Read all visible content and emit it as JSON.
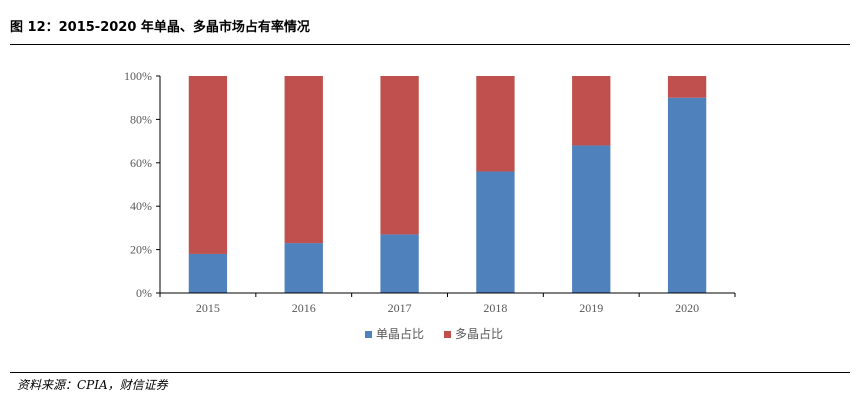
{
  "figure": {
    "title": "图 12：2015-2020 年单晶、多晶市场占有率情况",
    "source": "资料来源：CPIA，财信证券"
  },
  "chart_data": {
    "type": "bar",
    "stacked": true,
    "categories": [
      "2015",
      "2016",
      "2017",
      "2018",
      "2019",
      "2020"
    ],
    "series": [
      {
        "name": "单晶占比",
        "color": "#4f81bd",
        "values": [
          18,
          23,
          27,
          56,
          68,
          90
        ]
      },
      {
        "name": "多晶占比",
        "color": "#c0504d",
        "values": [
          82,
          77,
          73,
          44,
          32,
          10
        ]
      }
    ],
    "ylim": [
      0,
      100
    ],
    "yticks": [
      0,
      20,
      40,
      60,
      80,
      100
    ],
    "ytick_labels": [
      "0%",
      "20%",
      "40%",
      "60%",
      "80%",
      "100%"
    ],
    "grid": false,
    "legend_position": "bottom"
  }
}
